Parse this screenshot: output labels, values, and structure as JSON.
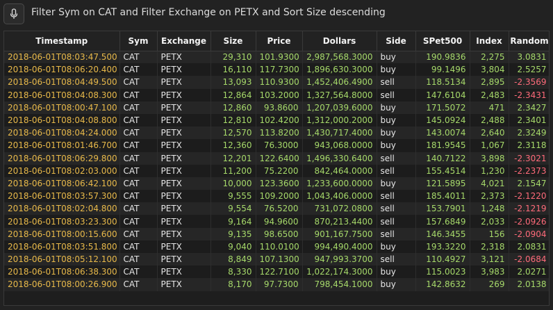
{
  "query": {
    "text": "Filter Sym on CAT and Filter Exchange on PETX and Sort Size descending"
  },
  "icons": {
    "mic": "microphone-icon"
  },
  "colors": {
    "timestamp": "#e8b94a",
    "positive_number": "#a6d96a",
    "negative_number": "#ff6b7a",
    "text": "#e6e6e6"
  },
  "table": {
    "columns": [
      "Timestamp",
      "Sym",
      "Exchange",
      "Size",
      "Price",
      "Dollars",
      "Side",
      "SPet500",
      "Index",
      "Random"
    ],
    "rows": [
      [
        "2018-06-01T08:03:47.500",
        "CAT",
        "PETX",
        "29,310",
        "101.9300",
        "2,987,568.3000",
        "buy",
        "190.9836",
        "2,275",
        "3.0831"
      ],
      [
        "2018-06-01T08:06:20.400",
        "CAT",
        "PETX",
        "16,110",
        "117.7300",
        "1,896,630.3000",
        "buy",
        "99.1496",
        "3,804",
        "2.5257"
      ],
      [
        "2018-06-01T08:04:49.500",
        "CAT",
        "PETX",
        "13,093",
        "110.9300",
        "1,452,406.4900",
        "sell",
        "118.5134",
        "2,895",
        "-2.3569"
      ],
      [
        "2018-06-01T08:04:08.300",
        "CAT",
        "PETX",
        "12,864",
        "103.2000",
        "1,327,564.8000",
        "sell",
        "147.6104",
        "2,483",
        "-2.3431"
      ],
      [
        "2018-06-01T08:00:47.100",
        "CAT",
        "PETX",
        "12,860",
        "93.8600",
        "1,207,039.6000",
        "buy",
        "171.5072",
        "471",
        "2.3427"
      ],
      [
        "2018-06-01T08:04:08.800",
        "CAT",
        "PETX",
        "12,810",
        "102.4200",
        "1,312,000.2000",
        "buy",
        "145.0924",
        "2,488",
        "2.3401"
      ],
      [
        "2018-06-01T08:04:24.000",
        "CAT",
        "PETX",
        "12,570",
        "113.8200",
        "1,430,717.4000",
        "buy",
        "143.0074",
        "2,640",
        "2.3249"
      ],
      [
        "2018-06-01T08:01:46.700",
        "CAT",
        "PETX",
        "12,360",
        "76.3000",
        "943,068.0000",
        "buy",
        "181.9545",
        "1,067",
        "2.3118"
      ],
      [
        "2018-06-01T08:06:29.800",
        "CAT",
        "PETX",
        "12,201",
        "122.6400",
        "1,496,330.6400",
        "sell",
        "140.7122",
        "3,898",
        "-2.3021"
      ],
      [
        "2018-06-01T08:02:03.000",
        "CAT",
        "PETX",
        "11,200",
        "75.2200",
        "842,464.0000",
        "sell",
        "155.4514",
        "1,230",
        "-2.2373"
      ],
      [
        "2018-06-01T08:06:42.100",
        "CAT",
        "PETX",
        "10,000",
        "123.3600",
        "1,233,600.0000",
        "buy",
        "121.5895",
        "4,021",
        "2.1547"
      ],
      [
        "2018-06-01T08:03:57.300",
        "CAT",
        "PETX",
        "9,555",
        "109.2000",
        "1,043,406.0000",
        "sell",
        "185.4011",
        "2,373",
        "-2.1220"
      ],
      [
        "2018-06-01T08:02:04.800",
        "CAT",
        "PETX",
        "9,554",
        "76.5200",
        "731,072.0800",
        "sell",
        "153.7901",
        "1,248",
        "-2.1219"
      ],
      [
        "2018-06-01T08:03:23.300",
        "CAT",
        "PETX",
        "9,164",
        "94.9600",
        "870,213.4400",
        "sell",
        "157.6849",
        "2,033",
        "-2.0926"
      ],
      [
        "2018-06-01T08:00:15.600",
        "CAT",
        "PETX",
        "9,135",
        "98.6500",
        "901,167.7500",
        "sell",
        "146.3455",
        "156",
        "-2.0904"
      ],
      [
        "2018-06-01T08:03:51.800",
        "CAT",
        "PETX",
        "9,040",
        "110.0100",
        "994,490.4000",
        "buy",
        "193.3220",
        "2,318",
        "2.0831"
      ],
      [
        "2018-06-01T08:05:12.100",
        "CAT",
        "PETX",
        "8,849",
        "107.1300",
        "947,993.3700",
        "sell",
        "110.4927",
        "3,121",
        "-2.0684"
      ],
      [
        "2018-06-01T08:06:38.300",
        "CAT",
        "PETX",
        "8,330",
        "122.7100",
        "1,022,174.3000",
        "buy",
        "115.0023",
        "3,983",
        "2.0271"
      ],
      [
        "2018-06-01T08:00:26.900",
        "CAT",
        "PETX",
        "8,170",
        "97.7300",
        "798,454.1000",
        "buy",
        "142.8632",
        "269",
        "2.0138"
      ]
    ]
  }
}
